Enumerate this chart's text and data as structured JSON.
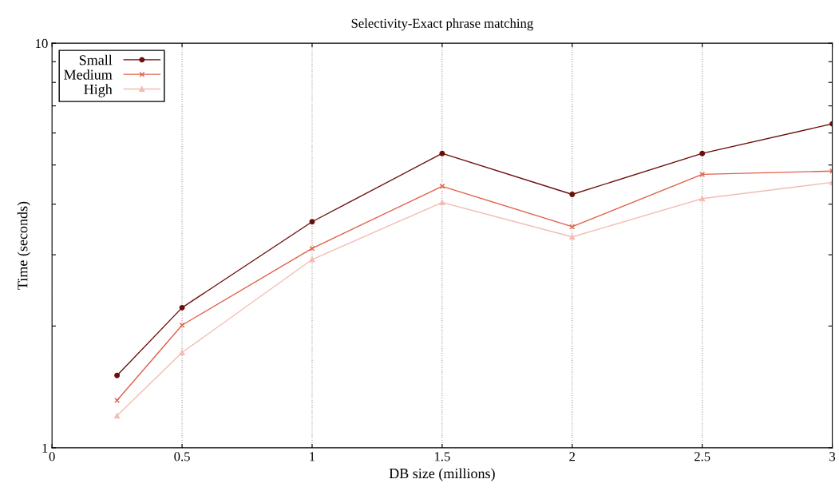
{
  "chart_data": {
    "type": "line",
    "title": "Selectivity-Exact phrase matching",
    "xlabel": "DB size (millions)",
    "ylabel": "Time (seconds)",
    "log": "y",
    "grid": "x",
    "legend": "top left",
    "xlim": [
      0,
      3
    ],
    "xticks": [
      0,
      {
        "value": 0.5,
        "label": "0.5"
      },
      1,
      {
        "value": 1.5,
        "label": "1.5"
      },
      2,
      {
        "value": 2.5,
        "label": "2.5"
      },
      3
    ],
    "ylim": [
      1,
      10
    ],
    "yticks": [
      1,
      {
        "value": 2,
        "label": null
      },
      {
        "value": 3,
        "label": null
      },
      {
        "value": 4,
        "label": null
      },
      {
        "value": 5,
        "label": null
      },
      {
        "value": 6,
        "label": null
      },
      {
        "value": 7,
        "label": null
      },
      {
        "value": 8,
        "label": null
      },
      {
        "value": 9,
        "label": null
      },
      10
    ],
    "x": [
      0.25,
      0.5,
      1,
      1.5,
      2,
      2.5,
      3
    ],
    "series": [
      {
        "name": "Small",
        "color": "#6b0f0a",
        "marker": "circle",
        "values": [
          1.51,
          2.22,
          3.62,
          5.34,
          4.23,
          5.34,
          6.32
        ]
      },
      {
        "name": "Medium",
        "color": "#e0604a",
        "marker": "cross",
        "values": [
          1.31,
          2.01,
          3.11,
          4.43,
          3.52,
          4.74,
          4.83
        ]
      },
      {
        "name": "High",
        "color": "#f2bcb2",
        "marker": "triangle",
        "values": [
          1.2,
          1.72,
          2.92,
          4.04,
          3.32,
          4.13,
          4.53
        ]
      }
    ]
  }
}
